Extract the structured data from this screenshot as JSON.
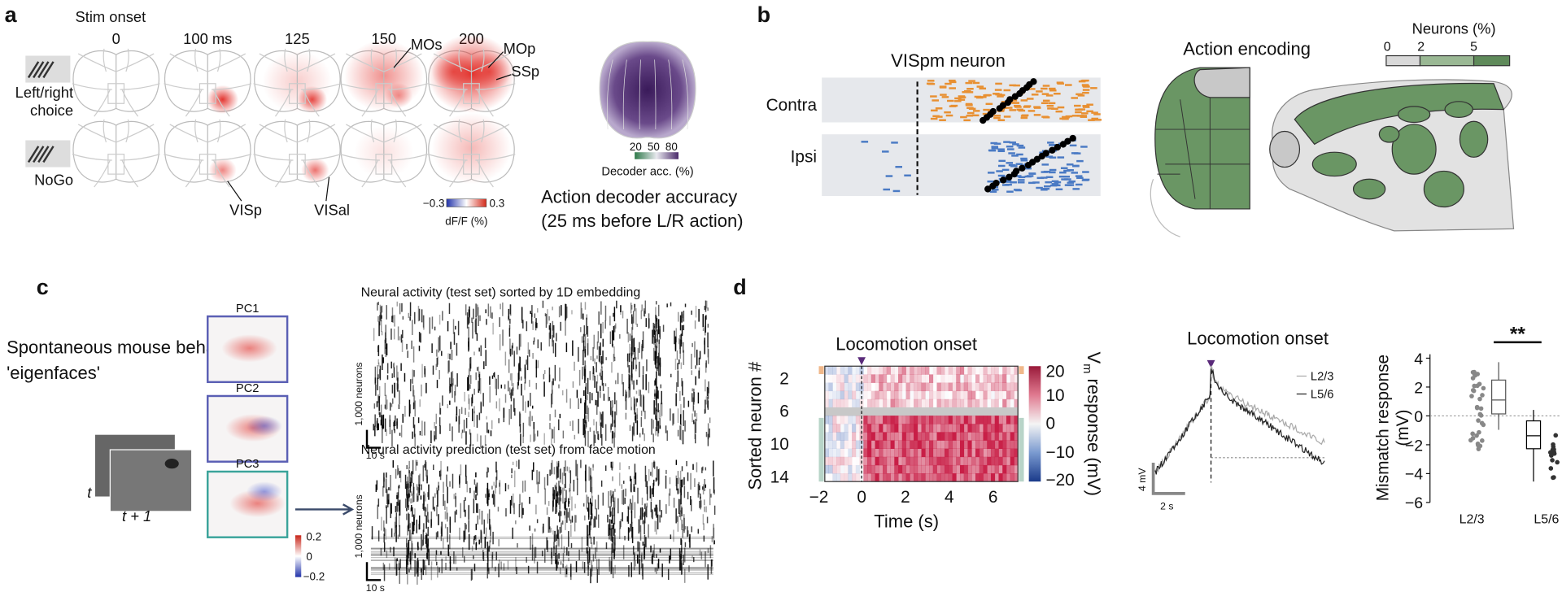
{
  "panel_a": {
    "label": "a",
    "stim_onset": "Stim onset",
    "times": [
      "0",
      "100 ms",
      "125",
      "150",
      "200"
    ],
    "row_labels": [
      [
        "Left/right",
        "choice"
      ],
      [
        "NoGo"
      ]
    ],
    "area_labels": [
      "MOs",
      "MOp",
      "SSp",
      "VISp",
      "VISal"
    ],
    "dff_colorbar": {
      "ticks": [
        "−0.3",
        "0.3"
      ],
      "label": "dF/F (%)"
    },
    "decoder_colorbar": {
      "ticks": [
        "20",
        "50",
        "80"
      ],
      "label": "Decoder acc. (%)"
    },
    "decoder_title": [
      "Action decoder accuracy",
      "(25 ms before L/R action)"
    ]
  },
  "panel_b": {
    "label": "b",
    "raster_title": "VISpm neuron",
    "raster_rows": [
      "Contra",
      "Ipsi"
    ],
    "map_title": "Action encoding",
    "legend_title": "Neurons (%)",
    "legend_ticks": [
      "0",
      "2",
      "5"
    ]
  },
  "panel_c": {
    "label": "c",
    "title": [
      "Spontaneous mouse behavior",
      "'eigenfaces'"
    ],
    "frame_labels": [
      "t",
      "t + 1"
    ],
    "pcs": [
      "PC1",
      "PC2",
      "PC3"
    ],
    "pc_colorbar_ticks": [
      "0.2",
      "0",
      "−0.2"
    ],
    "rasters": [
      {
        "title": "Neural activity (test set) sorted by 1D embedding",
        "y_scale": "1,000 neurons",
        "x_scale": "10 s"
      },
      {
        "title": "Neural activity prediction (test set) from face motion",
        "y_scale": "1,000 neurons",
        "x_scale": "10 s"
      }
    ]
  },
  "panel_d": {
    "label": "d",
    "heatmap": {
      "title": "Locomotion onset",
      "yticks": [
        "2",
        "6",
        "10",
        "14"
      ],
      "xticks": [
        "−2",
        "0",
        "2",
        "4",
        "6"
      ],
      "xlabel": "Time (s)",
      "ylabel": "Sorted neuron #",
      "colorbar_ticks": [
        "20",
        "10",
        "0",
        "−10",
        "−20"
      ],
      "colorbar_label": [
        "V",
        "m",
        " response (mV)"
      ]
    },
    "trace": {
      "title": "Locomotion onset",
      "legend": [
        "L2/3",
        "L5/6"
      ],
      "y_scale": "4 mV",
      "x_scale": "2 s"
    },
    "boxplot": {
      "yticks": [
        "4",
        "2",
        "0",
        "−2",
        "−4",
        "−6"
      ],
      "ylabel": [
        "Mismatch response",
        "(mV)"
      ],
      "significance": "**",
      "categories": [
        "L2/3",
        "L5/6"
      ]
    }
  }
}
